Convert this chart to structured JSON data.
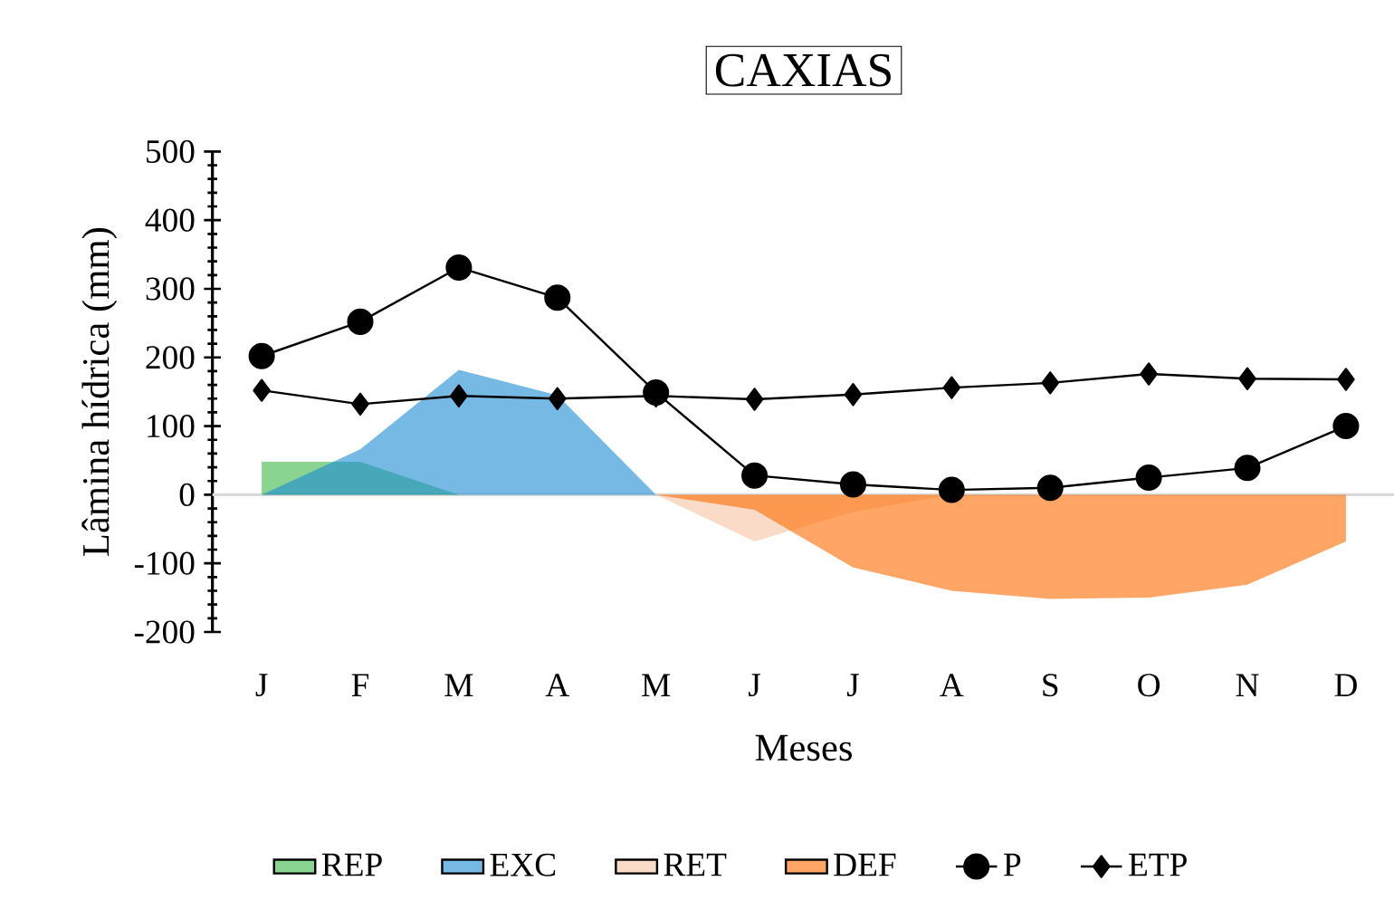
{
  "chart_data": {
    "type": "line",
    "title": "CAXIAS",
    "xlabel": "Meses",
    "ylabel": "Lâmina hídrica (mm)",
    "categories": [
      "J",
      "F",
      "M",
      "A",
      "M",
      "J",
      "J",
      "A",
      "S",
      "O",
      "N",
      "D"
    ],
    "series": [
      {
        "name": "REP",
        "type": "area",
        "color": "#3cb84a",
        "values": [
          48,
          48,
          0,
          null,
          null,
          null,
          null,
          null,
          null,
          null,
          null,
          null
        ]
      },
      {
        "name": "EXC",
        "type": "area",
        "color": "#1a8ad4",
        "values": [
          0,
          66,
          182,
          145,
          0,
          null,
          null,
          null,
          null,
          null,
          null,
          null
        ]
      },
      {
        "name": "RET",
        "type": "area",
        "color": "#f5c3a3",
        "values": [
          null,
          null,
          null,
          null,
          0,
          -68,
          -25,
          0,
          null,
          null,
          null,
          null
        ]
      },
      {
        "name": "DEF",
        "type": "area",
        "color": "#ff6a00",
        "values": [
          null,
          null,
          null,
          null,
          0,
          -22,
          -106,
          -140,
          -152,
          -150,
          -131,
          -68
        ]
      },
      {
        "name": "P",
        "color": "#000000",
        "marker": "circle",
        "values": [
          202,
          252,
          331,
          287,
          149,
          28,
          15,
          7,
          10,
          25,
          39,
          100
        ]
      },
      {
        "name": "ETP",
        "color": "#000000",
        "marker": "diamond",
        "values": [
          152,
          132,
          144,
          140,
          144,
          139,
          146,
          156,
          163,
          176,
          169,
          168
        ]
      }
    ],
    "ylim": [
      -200,
      500
    ],
    "yticks": [
      -200,
      -100,
      0,
      100,
      200,
      300,
      400,
      500
    ],
    "ref_lines": [
      {
        "axis": "y",
        "value": 0,
        "color": "#d9d9d9"
      }
    ],
    "grid": false,
    "legend": "bottom"
  }
}
